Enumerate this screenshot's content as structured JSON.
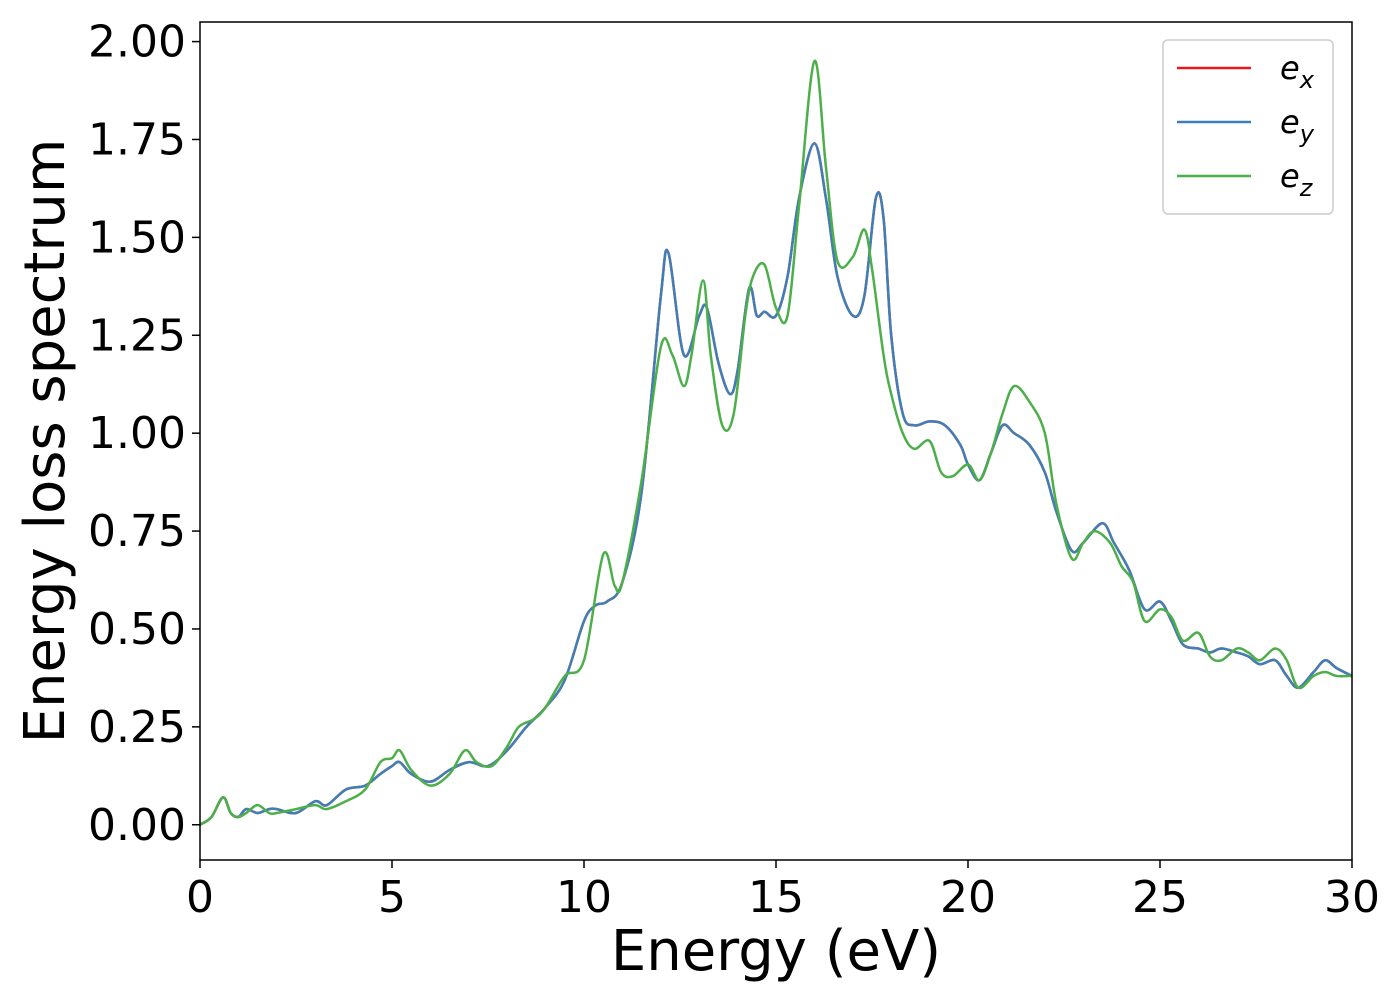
{
  "chart_data": {
    "type": "line",
    "xlabel": "Energy (eV)",
    "ylabel": "Energy loss spectrum",
    "xlim": [
      0,
      30
    ],
    "ylim": [
      -0.09,
      2.05
    ],
    "xticks": [
      0,
      5,
      10,
      15,
      20,
      25,
      30
    ],
    "yticks": [
      0.0,
      0.25,
      0.5,
      0.75,
      1.0,
      1.25,
      1.5,
      1.75,
      2.0
    ],
    "xtick_labels": [
      "0",
      "5",
      "10",
      "15",
      "20",
      "25",
      "30"
    ],
    "ytick_labels": [
      "0.00",
      "0.25",
      "0.50",
      "0.75",
      "1.00",
      "1.25",
      "1.50",
      "1.75",
      "2.00"
    ],
    "grid": false,
    "legend_position": "top-right",
    "series": [
      {
        "name": "e_x",
        "label_base": "e",
        "label_sub": "x",
        "color": "#e41a1c",
        "x": [
          0,
          0.3,
          0.6,
          0.8,
          1.0,
          1.2,
          1.5,
          1.8,
          2.0,
          2.5,
          3.0,
          3.3,
          3.8,
          4.3,
          4.7,
          5.0,
          5.2,
          5.5,
          6.0,
          6.5,
          7.0,
          7.5,
          8.0,
          8.5,
          9.0,
          9.5,
          10.0,
          10.3,
          10.6,
          11.0,
          11.5,
          12.0,
          12.2,
          12.6,
          13.0,
          13.2,
          13.5,
          13.8,
          14.0,
          14.3,
          14.5,
          14.7,
          15.0,
          15.3,
          15.6,
          16.0,
          16.3,
          16.6,
          17.0,
          17.3,
          17.6,
          17.8,
          18.0,
          18.3,
          18.6,
          19.0,
          19.4,
          19.8,
          20.0,
          20.3,
          20.6,
          20.9,
          21.2,
          21.6,
          22.0,
          22.3,
          22.7,
          23.0,
          23.5,
          23.8,
          24.2,
          24.6,
          25.0,
          25.3,
          25.6,
          26.0,
          26.3,
          26.6,
          27.0,
          27.3,
          27.6,
          28.0,
          28.3,
          28.6,
          29.0,
          29.3,
          29.6,
          30.0
        ],
        "y": [
          0.0,
          0.02,
          0.07,
          0.03,
          0.02,
          0.04,
          0.03,
          0.04,
          0.04,
          0.03,
          0.06,
          0.05,
          0.09,
          0.1,
          0.13,
          0.15,
          0.16,
          0.13,
          0.11,
          0.14,
          0.16,
          0.15,
          0.19,
          0.25,
          0.3,
          0.37,
          0.52,
          0.56,
          0.57,
          0.62,
          0.85,
          1.35,
          1.46,
          1.2,
          1.3,
          1.32,
          1.18,
          1.1,
          1.16,
          1.37,
          1.3,
          1.31,
          1.3,
          1.4,
          1.6,
          1.74,
          1.6,
          1.4,
          1.3,
          1.35,
          1.6,
          1.55,
          1.25,
          1.05,
          1.02,
          1.03,
          1.02,
          0.97,
          0.92,
          0.88,
          0.95,
          1.02,
          1.0,
          0.97,
          0.9,
          0.8,
          0.7,
          0.72,
          0.77,
          0.72,
          0.65,
          0.55,
          0.57,
          0.52,
          0.46,
          0.45,
          0.44,
          0.45,
          0.44,
          0.43,
          0.41,
          0.42,
          0.38,
          0.35,
          0.39,
          0.42,
          0.4,
          0.38
        ]
      },
      {
        "name": "e_y",
        "label_base": "e",
        "label_sub": "y",
        "color": "#3f7fb8",
        "x": [
          0,
          0.3,
          0.6,
          0.8,
          1.0,
          1.2,
          1.5,
          1.8,
          2.0,
          2.5,
          3.0,
          3.3,
          3.8,
          4.3,
          4.7,
          5.0,
          5.2,
          5.5,
          6.0,
          6.5,
          7.0,
          7.5,
          8.0,
          8.5,
          9.0,
          9.5,
          10.0,
          10.3,
          10.6,
          11.0,
          11.5,
          12.0,
          12.2,
          12.6,
          13.0,
          13.2,
          13.5,
          13.8,
          14.0,
          14.3,
          14.5,
          14.7,
          15.0,
          15.3,
          15.6,
          16.0,
          16.3,
          16.6,
          17.0,
          17.3,
          17.6,
          17.8,
          18.0,
          18.3,
          18.6,
          19.0,
          19.4,
          19.8,
          20.0,
          20.3,
          20.6,
          20.9,
          21.2,
          21.6,
          22.0,
          22.3,
          22.7,
          23.0,
          23.5,
          23.8,
          24.2,
          24.6,
          25.0,
          25.3,
          25.6,
          26.0,
          26.3,
          26.6,
          27.0,
          27.3,
          27.6,
          28.0,
          28.3,
          28.6,
          29.0,
          29.3,
          29.6,
          30.0
        ],
        "y": [
          0.0,
          0.02,
          0.07,
          0.03,
          0.02,
          0.04,
          0.03,
          0.04,
          0.04,
          0.03,
          0.06,
          0.05,
          0.09,
          0.1,
          0.13,
          0.15,
          0.16,
          0.13,
          0.11,
          0.14,
          0.16,
          0.15,
          0.19,
          0.25,
          0.3,
          0.37,
          0.52,
          0.56,
          0.57,
          0.62,
          0.85,
          1.35,
          1.46,
          1.2,
          1.3,
          1.32,
          1.18,
          1.1,
          1.16,
          1.37,
          1.3,
          1.31,
          1.3,
          1.4,
          1.6,
          1.74,
          1.6,
          1.4,
          1.3,
          1.35,
          1.6,
          1.55,
          1.25,
          1.05,
          1.02,
          1.03,
          1.02,
          0.97,
          0.92,
          0.88,
          0.95,
          1.02,
          1.0,
          0.97,
          0.9,
          0.8,
          0.7,
          0.72,
          0.77,
          0.72,
          0.65,
          0.55,
          0.57,
          0.52,
          0.46,
          0.45,
          0.44,
          0.45,
          0.44,
          0.43,
          0.41,
          0.42,
          0.38,
          0.35,
          0.39,
          0.42,
          0.4,
          0.38
        ]
      },
      {
        "name": "e_z",
        "label_base": "e",
        "label_sub": "z",
        "color": "#4daf4a",
        "x": [
          0,
          0.3,
          0.6,
          0.8,
          1.0,
          1.2,
          1.5,
          1.8,
          2.0,
          2.5,
          3.0,
          3.3,
          3.8,
          4.3,
          4.7,
          5.0,
          5.2,
          5.5,
          6.0,
          6.5,
          6.9,
          7.2,
          7.6,
          8.0,
          8.3,
          8.7,
          9.0,
          9.5,
          10.0,
          10.5,
          10.8,
          11.0,
          11.5,
          12.0,
          12.3,
          12.6,
          12.8,
          13.1,
          13.3,
          13.6,
          13.9,
          14.2,
          14.4,
          14.7,
          15.0,
          15.3,
          15.6,
          16.0,
          16.3,
          16.6,
          17.0,
          17.3,
          17.5,
          17.8,
          18.0,
          18.3,
          18.6,
          19.0,
          19.3,
          19.6,
          20.0,
          20.3,
          20.6,
          20.9,
          21.2,
          21.6,
          22.0,
          22.3,
          22.7,
          23.0,
          23.3,
          23.7,
          24.0,
          24.3,
          24.6,
          25.0,
          25.3,
          25.6,
          26.0,
          26.3,
          26.6,
          27.0,
          27.3,
          27.6,
          28.0,
          28.3,
          28.6,
          29.0,
          29.3,
          29.6,
          30.0
        ],
        "y": [
          0.0,
          0.02,
          0.07,
          0.03,
          0.02,
          0.03,
          0.05,
          0.03,
          0.03,
          0.04,
          0.05,
          0.04,
          0.06,
          0.09,
          0.16,
          0.17,
          0.19,
          0.14,
          0.1,
          0.13,
          0.19,
          0.16,
          0.15,
          0.2,
          0.25,
          0.27,
          0.3,
          0.38,
          0.42,
          0.69,
          0.61,
          0.62,
          0.88,
          1.22,
          1.2,
          1.12,
          1.2,
          1.39,
          1.2,
          1.02,
          1.05,
          1.3,
          1.4,
          1.43,
          1.32,
          1.3,
          1.58,
          1.95,
          1.68,
          1.44,
          1.45,
          1.52,
          1.42,
          1.2,
          1.1,
          1.0,
          0.96,
          0.98,
          0.9,
          0.89,
          0.92,
          0.88,
          0.95,
          1.05,
          1.12,
          1.08,
          1.0,
          0.82,
          0.68,
          0.72,
          0.75,
          0.72,
          0.66,
          0.62,
          0.52,
          0.55,
          0.53,
          0.47,
          0.49,
          0.43,
          0.42,
          0.45,
          0.44,
          0.42,
          0.45,
          0.42,
          0.35,
          0.38,
          0.39,
          0.38,
          0.38
        ]
      }
    ]
  }
}
